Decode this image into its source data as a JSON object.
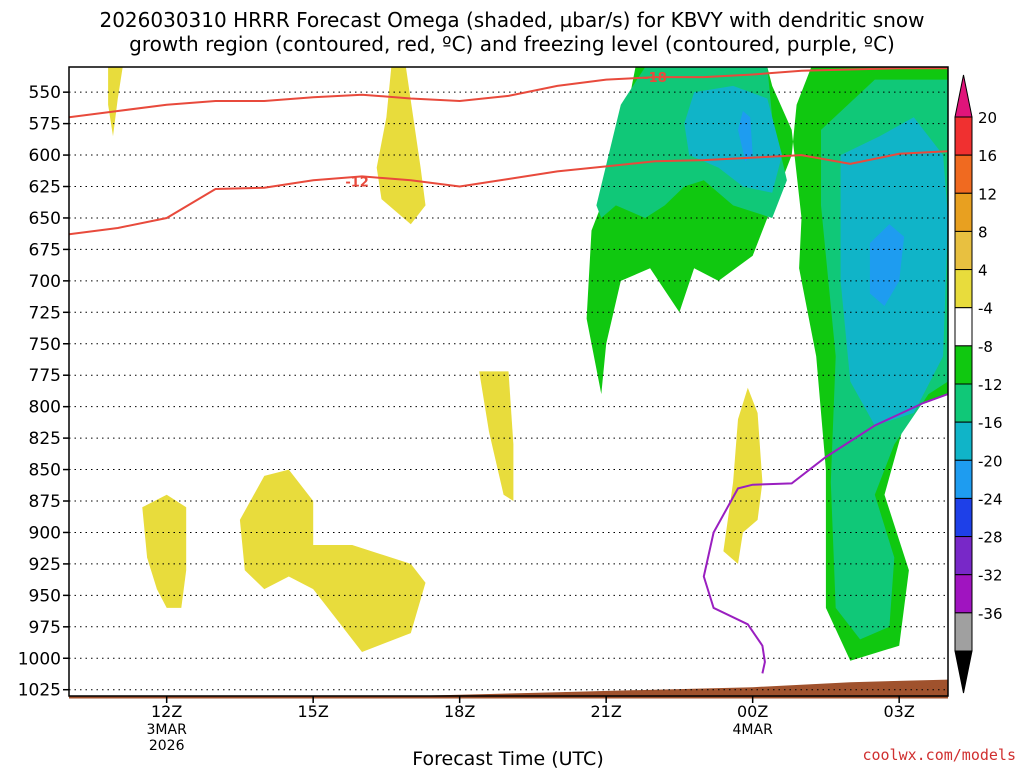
{
  "title": "2026030310 HRRR Forecast Omega (shaded, µbar/s) for KBVY with dendritic snow\ngrowth region (contoured, red, ºC) and freezing level (contoured, purple, ºC)",
  "credit": "coolwx.com/models",
  "colors": {
    "dgz": "#e84a3c",
    "freezing": "#9a1fc0",
    "terrain": "#a0522d"
  },
  "chart_data": {
    "type": "heatmap",
    "xlabel": "Forecast Time (UTC)",
    "ylabel": "",
    "ylim": [
      1030,
      530
    ],
    "pressure_ticks": [
      550,
      575,
      600,
      625,
      650,
      675,
      700,
      725,
      750,
      775,
      800,
      825,
      850,
      875,
      900,
      925,
      950,
      975,
      1000,
      1025
    ],
    "x_ticks": [
      {
        "hour": 12,
        "label": "12Z",
        "sub": [
          "3MAR",
          "2026"
        ]
      },
      {
        "hour": 15,
        "label": "15Z",
        "sub": []
      },
      {
        "hour": 18,
        "label": "18Z",
        "sub": []
      },
      {
        "hour": 21,
        "label": "21Z",
        "sub": []
      },
      {
        "hour": 24,
        "label": "00Z",
        "sub": [
          "4MAR"
        ]
      },
      {
        "hour": 27,
        "label": "03Z",
        "sub": []
      }
    ],
    "xlim": [
      10,
      28
    ],
    "colorbar": {
      "levels": [
        20,
        16,
        12,
        8,
        4,
        -4,
        -8,
        -12,
        -16,
        -20,
        -24,
        -28,
        -32,
        -36
      ],
      "colors": [
        "#f03030",
        "#f06a20",
        "#e8a020",
        "#e8c040",
        "#e8dc3c",
        "#ffffff",
        "#10c810",
        "#10c878",
        "#10b4c8",
        "#1e9cf0",
        "#1e40e8",
        "#7828c8",
        "#a014c0",
        "#a0a0a0"
      ],
      "top_arrow": "#e0147a",
      "bottom_arrow": "#000000"
    },
    "contour_labels": [
      {
        "text": "-18",
        "hour": 22.0,
        "p": 538
      },
      {
        "text": "-12",
        "hour": 15.9,
        "p": 621
      }
    ],
    "dgz_lines": [
      [
        [
          10,
          570
        ],
        [
          11,
          565
        ],
        [
          12,
          560
        ],
        [
          13,
          557
        ],
        [
          14,
          557
        ],
        [
          15,
          554
        ],
        [
          16,
          552
        ],
        [
          17,
          555
        ],
        [
          18,
          557
        ],
        [
          19,
          553
        ],
        [
          20,
          545
        ],
        [
          21,
          540
        ],
        [
          22,
          538
        ],
        [
          23,
          538
        ],
        [
          24,
          536
        ],
        [
          25,
          533
        ],
        [
          26,
          532
        ],
        [
          27,
          531
        ],
        [
          28,
          531
        ]
      ],
      [
        [
          10,
          663
        ],
        [
          11,
          658
        ],
        [
          12,
          650
        ],
        [
          13,
          627
        ],
        [
          14,
          626
        ],
        [
          15,
          620
        ],
        [
          16,
          617
        ],
        [
          17,
          620
        ],
        [
          18,
          625
        ],
        [
          19,
          619
        ],
        [
          20,
          613
        ],
        [
          21,
          609
        ],
        [
          22,
          605
        ],
        [
          23,
          604
        ],
        [
          24,
          602
        ],
        [
          25,
          600
        ],
        [
          26,
          607
        ],
        [
          27,
          599
        ],
        [
          28,
          597
        ]
      ]
    ],
    "freezing_line": [
      [
        24.2,
        1012
      ],
      [
        24.25,
        1003
      ],
      [
        24.2,
        990
      ],
      [
        23.9,
        973
      ],
      [
        23.2,
        960
      ],
      [
        23.0,
        935
      ],
      [
        23.2,
        900
      ],
      [
        23.7,
        865
      ],
      [
        24.0,
        862
      ],
      [
        24.8,
        861
      ],
      [
        25.5,
        840
      ],
      [
        26.5,
        815
      ],
      [
        27.5,
        797
      ],
      [
        28,
        790
      ]
    ],
    "series": [
      {
        "name": "",
        "level": -4,
        "color": "#10c810",
        "polygon": [
          [
            20.6,
            730
          ],
          [
            20.7,
            660
          ],
          [
            21.2,
            610
          ],
          [
            21.6,
            530
          ],
          [
            24.3,
            530
          ],
          [
            24.4,
            545
          ],
          [
            24.8,
            580
          ],
          [
            25.0,
            650
          ],
          [
            24.95,
            690
          ],
          [
            25.3,
            760
          ],
          [
            25.5,
            850
          ],
          [
            25.5,
            960
          ],
          [
            26.0,
            1002
          ],
          [
            27.0,
            990
          ],
          [
            27.2,
            930
          ],
          [
            26.7,
            870
          ],
          [
            27.2,
            800
          ],
          [
            28,
            790
          ],
          [
            28,
            530
          ],
          [
            25.2,
            530
          ],
          [
            24.9,
            560
          ],
          [
            24.8,
            600
          ],
          [
            24.0,
            680
          ],
          [
            23.3,
            700
          ],
          [
            22.8,
            690
          ],
          [
            22.5,
            725
          ],
          [
            21.9,
            690
          ],
          [
            21.3,
            700
          ],
          [
            21.0,
            750
          ],
          [
            20.9,
            790
          ]
        ]
      },
      {
        "name": "",
        "level": -8,
        "color": "#10c878",
        "polygon": [
          [
            20.8,
            640
          ],
          [
            21.3,
            560
          ],
          [
            21.8,
            530
          ],
          [
            24.3,
            530
          ],
          [
            24.4,
            570
          ],
          [
            24.7,
            620
          ],
          [
            24.4,
            650
          ],
          [
            23.6,
            640
          ],
          [
            23.0,
            620
          ],
          [
            22.6,
            625
          ],
          [
            22.2,
            640
          ],
          [
            21.8,
            650
          ],
          [
            21.2,
            640
          ],
          [
            20.9,
            650
          ]
        ]
      },
      {
        "name": "",
        "level": -8,
        "color": "#10c878",
        "polygon": [
          [
            25.4,
            580
          ],
          [
            25.4,
            640
          ],
          [
            25.7,
            760
          ],
          [
            25.6,
            860
          ],
          [
            25.7,
            960
          ],
          [
            26.2,
            985
          ],
          [
            26.8,
            975
          ],
          [
            26.9,
            920
          ],
          [
            26.5,
            870
          ],
          [
            26.9,
            830
          ],
          [
            27.6,
            790
          ],
          [
            28,
            780
          ],
          [
            28,
            540
          ],
          [
            26.5,
            540
          ]
        ]
      },
      {
        "name": "",
        "level": -12,
        "color": "#10b4c8",
        "polygon": [
          [
            22.8,
            550
          ],
          [
            23.6,
            545
          ],
          [
            24.3,
            555
          ],
          [
            24.6,
            600
          ],
          [
            24.4,
            630
          ],
          [
            23.8,
            625
          ],
          [
            23.3,
            610
          ],
          [
            22.7,
            600
          ],
          [
            22.6,
            575
          ]
        ]
      },
      {
        "name": "",
        "level": -12,
        "color": "#10b4c8",
        "polygon": [
          [
            25.8,
            600
          ],
          [
            26.6,
            585
          ],
          [
            27.3,
            570
          ],
          [
            27.9,
            600
          ],
          [
            28,
            650
          ],
          [
            27.9,
            760
          ],
          [
            27.3,
            805
          ],
          [
            26.5,
            815
          ],
          [
            26.0,
            780
          ],
          [
            25.8,
            700
          ]
        ]
      },
      {
        "name": "",
        "level": -16,
        "color": "#1e9cf0",
        "polygon": [
          [
            23.7,
            580
          ],
          [
            23.8,
            565
          ],
          [
            23.95,
            570
          ],
          [
            24.0,
            600
          ],
          [
            23.85,
            605
          ]
        ]
      },
      {
        "name": "",
        "level": -16,
        "color": "#1e9cf0",
        "polygon": [
          [
            26.4,
            670
          ],
          [
            26.8,
            655
          ],
          [
            27.1,
            665
          ],
          [
            27.0,
            700
          ],
          [
            26.7,
            720
          ],
          [
            26.4,
            710
          ]
        ]
      },
      {
        "name": "",
        "level": 4,
        "color": "#e8dc3c",
        "polygon": [
          [
            10.8,
            530
          ],
          [
            11.1,
            530
          ],
          [
            11.0,
            555
          ],
          [
            10.9,
            585
          ],
          [
            10.8,
            560
          ]
        ]
      },
      {
        "name": "",
        "level": 4,
        "color": "#e8dc3c",
        "polygon": [
          [
            16.6,
            530
          ],
          [
            16.9,
            530
          ],
          [
            17.2,
            610
          ],
          [
            17.3,
            640
          ],
          [
            17.0,
            655
          ],
          [
            16.4,
            635
          ],
          [
            16.3,
            610
          ],
          [
            16.5,
            570
          ]
        ]
      },
      {
        "name": "",
        "level": 4,
        "color": "#e8dc3c",
        "polygon": [
          [
            18.4,
            772
          ],
          [
            19.0,
            772
          ],
          [
            19.1,
            830
          ],
          [
            19.1,
            875
          ],
          [
            18.9,
            870
          ],
          [
            18.6,
            820
          ]
        ]
      },
      {
        "name": "",
        "level": 4,
        "color": "#e8dc3c",
        "polygon": [
          [
            23.9,
            785
          ],
          [
            24.1,
            805
          ],
          [
            24.2,
            860
          ],
          [
            24.1,
            890
          ],
          [
            23.8,
            900
          ],
          [
            23.7,
            925
          ],
          [
            23.4,
            915
          ],
          [
            23.6,
            860
          ],
          [
            23.7,
            810
          ]
        ]
      },
      {
        "name": "",
        "level": 4,
        "color": "#e8dc3c",
        "polygon": [
          [
            11.5,
            880
          ],
          [
            12.0,
            870
          ],
          [
            12.4,
            880
          ],
          [
            12.4,
            930
          ],
          [
            12.3,
            960
          ],
          [
            12.0,
            960
          ],
          [
            11.8,
            945
          ],
          [
            11.6,
            920
          ]
        ]
      },
      {
        "name": "",
        "level": 4,
        "color": "#e8dc3c",
        "polygon": [
          [
            13.5,
            890
          ],
          [
            14.0,
            855
          ],
          [
            14.5,
            850
          ],
          [
            15.0,
            875
          ],
          [
            15.0,
            910
          ],
          [
            15.8,
            910
          ],
          [
            17.0,
            925
          ],
          [
            17.3,
            940
          ],
          [
            17.0,
            980
          ],
          [
            16.0,
            995
          ],
          [
            15.5,
            970
          ],
          [
            15.0,
            945
          ],
          [
            14.5,
            935
          ],
          [
            14.0,
            945
          ],
          [
            13.6,
            930
          ]
        ]
      }
    ],
    "terrain": [
      [
        10,
        1030
      ],
      [
        17,
        1030
      ],
      [
        20,
        1027
      ],
      [
        24,
        1023
      ],
      [
        26,
        1019
      ],
      [
        28,
        1017
      ]
    ]
  }
}
